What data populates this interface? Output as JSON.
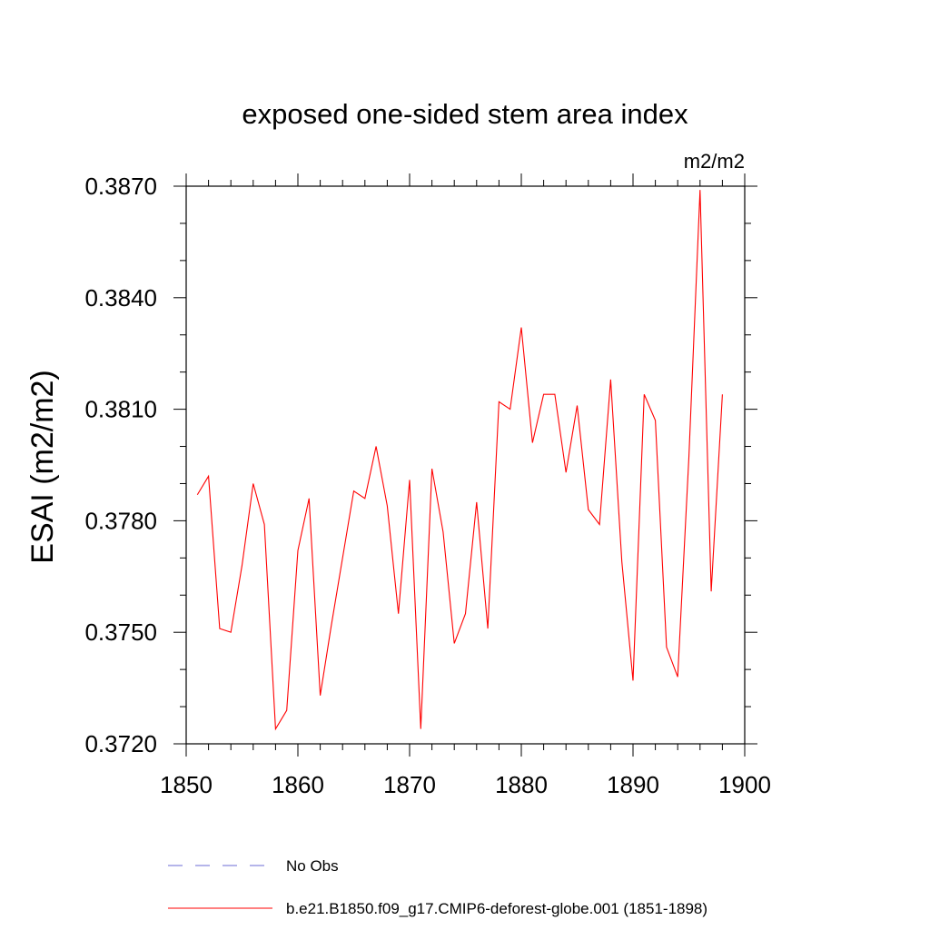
{
  "chart_data": {
    "type": "line",
    "title": "exposed one-sided stem area index",
    "units_label": "m2/m2",
    "xlabel": "",
    "ylabel": "ESAI  (m2/m2)",
    "xlim": [
      1850,
      1900
    ],
    "ylim": [
      0.372,
      0.3875
    ],
    "x_ticks": [
      "1850",
      "1860",
      "1870",
      "1880",
      "1890",
      "1900"
    ],
    "y_ticks": [
      "0.3720",
      "0.3750",
      "0.3780",
      "0.3810",
      "0.3840",
      "0.3870"
    ],
    "legend_position": "bottom",
    "series": [
      {
        "name": "No Obs",
        "color": "#6b6bd6",
        "style": "dashed",
        "x": [],
        "values": []
      },
      {
        "name": "b.e21.B1850.f09_g17.CMIP6-deforest-globe.001 (1851-1898)",
        "color": "#ff0000",
        "style": "solid",
        "x": [
          1851,
          1852,
          1853,
          1854,
          1855,
          1856,
          1857,
          1858,
          1859,
          1860,
          1861,
          1862,
          1863,
          1864,
          1865,
          1866,
          1867,
          1868,
          1869,
          1870,
          1871,
          1872,
          1873,
          1874,
          1875,
          1876,
          1877,
          1878,
          1879,
          1880,
          1881,
          1882,
          1883,
          1884,
          1885,
          1886,
          1887,
          1888,
          1889,
          1890,
          1891,
          1892,
          1893,
          1894,
          1895,
          1896,
          1897,
          1898
        ],
        "values": [
          0.3787,
          0.3792,
          0.3751,
          0.375,
          0.3768,
          0.379,
          0.3779,
          0.3724,
          0.3729,
          0.3772,
          0.3786,
          0.3733,
          0.3752,
          0.377,
          0.3788,
          0.3786,
          0.38,
          0.3784,
          0.3755,
          0.3791,
          0.3724,
          0.3794,
          0.3777,
          0.3747,
          0.3755,
          0.3785,
          0.3751,
          0.3812,
          0.381,
          0.3832,
          0.3801,
          0.3814,
          0.3814,
          0.3793,
          0.3811,
          0.3783,
          0.3779,
          0.3818,
          0.3769,
          0.3737,
          0.3814,
          0.3807,
          0.3746,
          0.3738,
          0.3797,
          0.3869,
          0.3761,
          0.3814
        ]
      }
    ]
  }
}
